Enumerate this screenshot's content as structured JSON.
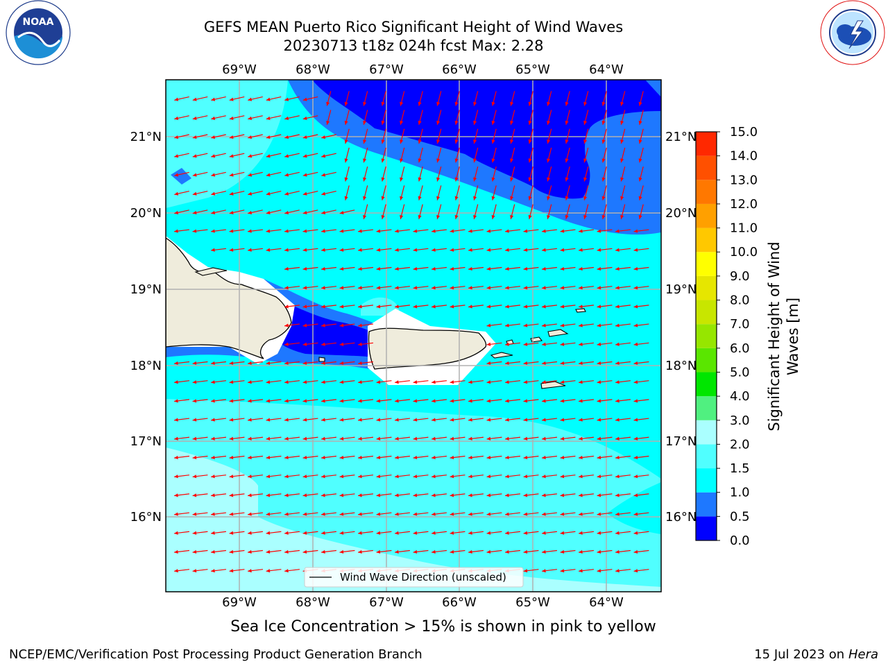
{
  "title": {
    "line1": "GEFS MEAN Puerto Rico Significant Height of Wind Waves",
    "line2": "20230713 t18z 024h fcst   Max: 2.28"
  },
  "logos": {
    "left": "NOAA",
    "left_ring": "NATIONAL OCEANIC AND ATMOSPHERIC ADMINISTRATION · U.S. DEPARTMENT OF COMMERCE",
    "right_ring": "NATIONAL WEATHER SERVICE"
  },
  "map": {
    "lon_ticks": [
      "69°W",
      "68°W",
      "67°W",
      "66°W",
      "65°W",
      "64°W"
    ],
    "lat_ticks": [
      "21°N",
      "20°N",
      "19°N",
      "18°N",
      "17°N",
      "16°N"
    ],
    "lat_ticks_right": [
      "21°N",
      "20°N",
      "19°N",
      "18°N",
      "17°N",
      "16°N"
    ],
    "legend_label": "Wind Wave Direction (unscaled)",
    "arrow_color": "#ff0000",
    "land_color": "#efecdc"
  },
  "colorbar": {
    "label": "Significant Height of Wind Waves [m]",
    "label_line1": "Significant Height of Wind",
    "label_line2": "Waves [m]",
    "ticks": [
      "15.0",
      "14.0",
      "13.0",
      "12.0",
      "11.0",
      "10.0",
      "9.0",
      "8.0",
      "7.0",
      "6.0",
      "5.0",
      "4.0",
      "3.0",
      "2.0",
      "1.5",
      "1.0",
      "0.5",
      "0.0"
    ],
    "colors_bottom_to_top": [
      "#0000ff",
      "#1e78ff",
      "#00ffff",
      "#50ffff",
      "#aaffff",
      "#50f080",
      "#2ee65a",
      "#00e600",
      "#3ce600",
      "#96e600",
      "#c8e600",
      "#e6e600",
      "#ffff00",
      "#ffc800",
      "#ffa000",
      "#ff7800",
      "#ff5000",
      "#ff2800",
      "#ff0000"
    ]
  },
  "caption": "Sea Ice Concentration > 15% is shown in pink to yellow",
  "footer": {
    "left": "NCEP/EMC/Verification Post Processing Product Generation Branch",
    "right_date": "15 Jul 2023 on ",
    "right_host": "Hera"
  }
}
